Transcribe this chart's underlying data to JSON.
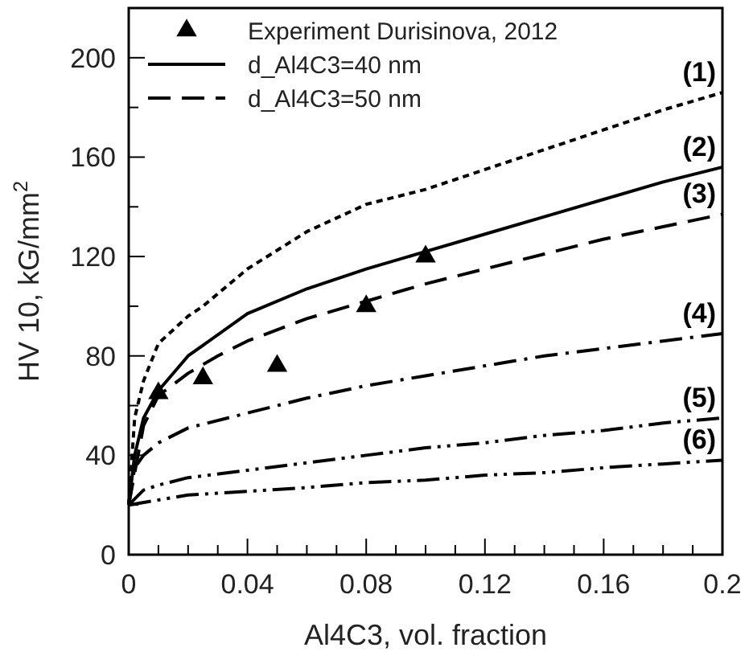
{
  "chart_data": {
    "type": "line",
    "xlabel": "Al4C3, vol. fraction",
    "ylabel": "HV 10, kG/mm$^{2}$",
    "xlim": [
      0,
      0.2
    ],
    "ylim": [
      0,
      220
    ],
    "xticks": [
      0,
      0.04,
      0.08,
      0.12,
      0.16,
      0.2,
      {
        "value": 0.01,
        "label": null
      },
      {
        "value": 0.02,
        "label": null
      },
      {
        "value": 0.03,
        "label": null
      },
      {
        "value": 0.05,
        "label": null
      },
      {
        "value": 0.06,
        "label": null
      },
      {
        "value": 0.07,
        "label": null
      },
      {
        "value": 0.09,
        "label": null
      },
      {
        "value": 0.1,
        "label": null
      },
      {
        "value": 0.11,
        "label": null
      },
      {
        "value": 0.13,
        "label": null
      },
      {
        "value": 0.14,
        "label": null
      },
      {
        "value": 0.15,
        "label": null
      },
      {
        "value": 0.17,
        "label": null
      },
      {
        "value": 0.18,
        "label": null
      },
      {
        "value": 0.19,
        "label": null
      }
    ],
    "yticks": [
      0,
      40,
      80,
      120,
      160,
      200,
      {
        "value": 20,
        "label": null
      },
      {
        "value": 60,
        "label": null
      },
      {
        "value": 100,
        "label": null
      },
      {
        "value": 140,
        "label": null
      },
      {
        "value": 180,
        "label": null
      },
      {
        "value": 220,
        "label": null
      }
    ],
    "legend": "top left",
    "grid": false,
    "series": [
      {
        "name": "Experiment Durisinova, 2012",
        "type": "scatter",
        "marker": "triangle",
        "color": "#000000",
        "x": [
          0.01,
          0.025,
          0.05,
          0.08,
          0.1
        ],
        "values": [
          65,
          71,
          76,
          100,
          120
        ]
      },
      {
        "name": "d_Al4C3=40 nm",
        "line_style": "solid",
        "color": "#000000",
        "x": [
          0,
          0.002,
          0.005,
          0.01,
          0.02,
          0.04,
          0.06,
          0.08,
          0.1,
          0.12,
          0.14,
          0.16,
          0.18,
          0.2
        ],
        "values": [
          20,
          40,
          55,
          66,
          80,
          97,
          107,
          115,
          122,
          129,
          136,
          143,
          150,
          156
        ]
      },
      {
        "name": "d_Al4C3=50 nm",
        "line_style": "dashed",
        "color": "#000000",
        "x": [
          0,
          0.005,
          0.01,
          0.02,
          0.03,
          0.04,
          0.06,
          0.08,
          0.1,
          0.12,
          0.14,
          0.16,
          0.18,
          0.2
        ],
        "values": [
          20,
          52,
          64,
          73,
          80,
          86,
          95,
          102,
          109,
          115,
          121,
          127,
          132,
          137
        ]
      },
      {
        "line_style": "dotted",
        "color": "#000000",
        "x": [
          0,
          0.002,
          0.005,
          0.01,
          0.02,
          0.025,
          0.04,
          0.06,
          0.08,
          0.1,
          0.12,
          0.14,
          0.16,
          0.18,
          0.2
        ],
        "values": [
          20,
          55,
          70,
          85,
          96,
          100,
          115,
          130,
          141,
          147,
          155,
          163,
          171,
          179,
          186
        ]
      },
      {
        "line_style": "dashdot",
        "color": "#000000",
        "x": [
          0,
          0.002,
          0.005,
          0.01,
          0.02,
          0.04,
          0.06,
          0.08,
          0.1,
          0.12,
          0.14,
          0.16,
          0.18,
          0.2
        ],
        "values": [
          20,
          35,
          40,
          45,
          51,
          57,
          63,
          68,
          72,
          76,
          80,
          83,
          86,
          89
        ]
      },
      {
        "line_style": "dashdotdot",
        "color": "#000000",
        "x": [
          0,
          0.005,
          0.01,
          0.02,
          0.04,
          0.06,
          0.08,
          0.1,
          0.12,
          0.14,
          0.16,
          0.18,
          0.2
        ],
        "values": [
          20,
          26,
          28,
          31,
          34,
          37,
          40,
          43,
          45,
          48,
          50,
          53,
          55
        ]
      },
      {
        "line_style": "dashdotdot",
        "color": "#000000",
        "x": [
          0,
          0.01,
          0.02,
          0.04,
          0.06,
          0.08,
          0.1,
          0.12,
          0.14,
          0.16,
          0.18,
          0.2
        ],
        "values": [
          20,
          22,
          24,
          25.5,
          27,
          29,
          30,
          32,
          33,
          35,
          36.5,
          38
        ]
      }
    ],
    "annotations": [
      "(1)",
      "(2)",
      "(3)",
      "(4)",
      "(5)",
      "(6)"
    ]
  }
}
